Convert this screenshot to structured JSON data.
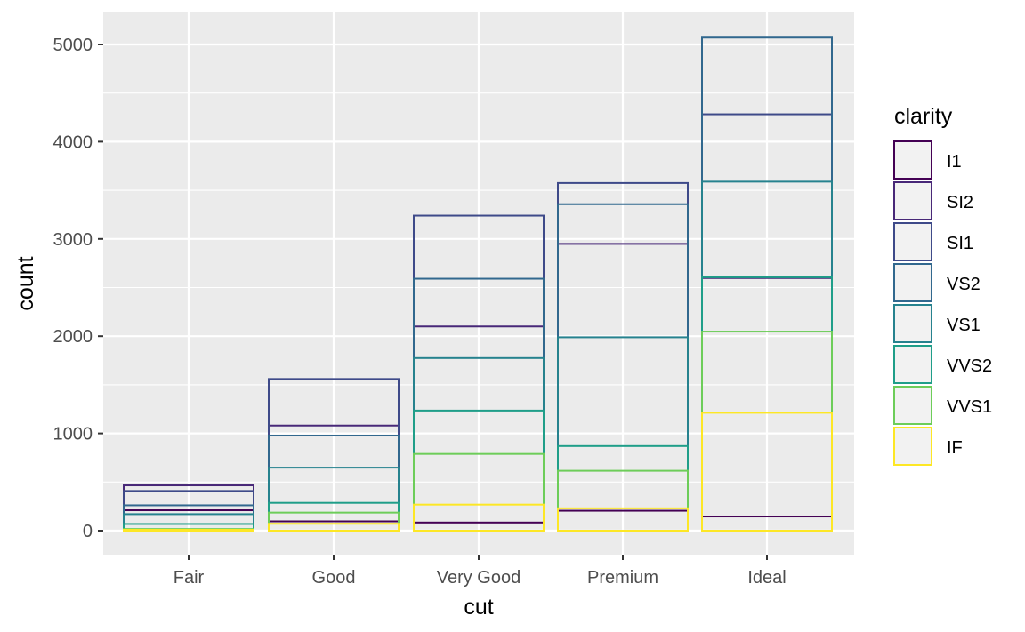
{
  "chart_data": {
    "type": "bar",
    "xlabel": "cut",
    "ylabel": "count",
    "categories": [
      "Fair",
      "Good",
      "Very Good",
      "Premium",
      "Ideal"
    ],
    "ylim": [
      -240,
      5300
    ],
    "y_ticks": [
      0,
      1000,
      2000,
      3000,
      4000,
      5000
    ],
    "grid": true,
    "legend": {
      "title": "clarity",
      "position": "right"
    },
    "position": "identity (overlapping bars, fill transparent, colored outline)",
    "series": [
      {
        "name": "I1",
        "color": "#440154",
        "values": [
          210,
          96,
          84,
          205,
          146
        ]
      },
      {
        "name": "SI2",
        "color": "#482878",
        "values": [
          466,
          1081,
          2100,
          2949,
          2598
        ]
      },
      {
        "name": "SI1",
        "color": "#3E4A89",
        "values": [
          408,
          1560,
          3240,
          3575,
          4282
        ]
      },
      {
        "name": "VS2",
        "color": "#31688E",
        "values": [
          261,
          978,
          2591,
          3357,
          5071
        ]
      },
      {
        "name": "VS1",
        "color": "#26828E",
        "values": [
          170,
          648,
          1775,
          1989,
          3589
        ]
      },
      {
        "name": "VVS2",
        "color": "#1F9E89",
        "values": [
          69,
          286,
          1235,
          870,
          2606
        ]
      },
      {
        "name": "VVS1",
        "color": "#6DCD59",
        "values": [
          17,
          186,
          789,
          616,
          2047
        ]
      },
      {
        "name": "IF",
        "color": "#FDE725",
        "values": [
          9,
          71,
          268,
          230,
          1212
        ]
      }
    ]
  },
  "colors": {
    "panel_background": "#EBEBEB",
    "grid_major": "#FFFFFF",
    "legend_key_fill": "#F2F2F2"
  }
}
